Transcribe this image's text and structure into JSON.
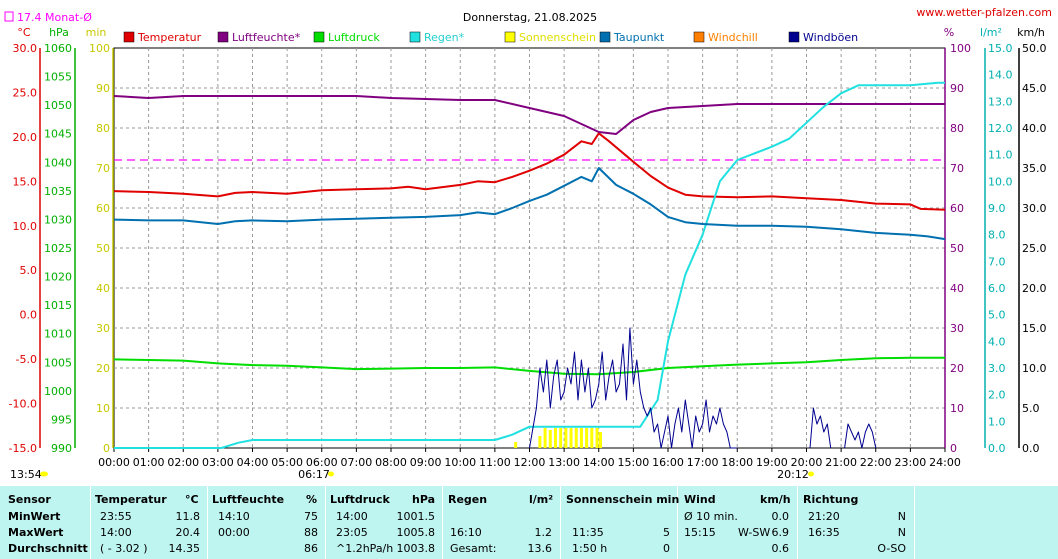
{
  "header": {
    "title": "Donnerstag, 21.08.2025",
    "site": "www.wetter-pfalzen.com",
    "month_avg_legend": "17.4 Monat-Ø"
  },
  "unit_labels": {
    "temp": "°C",
    "pressure": "hPa",
    "sun": "min",
    "hum": "%",
    "rain": "l/m²",
    "wind": "km/h"
  },
  "markers": {
    "sunrise": "06:17",
    "sunset": "20:12",
    "time_left": "13:54"
  },
  "colors": {
    "temperature": "#e00000",
    "humidity": "#800080",
    "pressure": "#00dd00",
    "rain": "#20e0e0",
    "sunshine": "#ffff00",
    "dewpoint": "#0070b0",
    "windchill": "#ff8000",
    "gusts": "#000090",
    "month_avg": "#ff00ff",
    "table_bg": "#bff5f1"
  },
  "chart_data": {
    "type": "line",
    "title": "Donnerstag, 21.08.2025",
    "x_ticks": [
      "00:00",
      "01:00",
      "02:00",
      "03:00",
      "04:00",
      "05:00",
      "06:00",
      "07:00",
      "08:00",
      "09:00",
      "10:00",
      "11:00",
      "12:00",
      "13:00",
      "14:00",
      "15:00",
      "16:00",
      "17:00",
      "18:00",
      "19:00",
      "20:00",
      "21:00",
      "22:00",
      "23:00",
      "24:00"
    ],
    "xlim_hours": [
      0,
      24
    ],
    "axes": {
      "temp": {
        "label": "°C",
        "range": [
          -15,
          30
        ],
        "ticks": [
          "30.0",
          "25.0",
          "20.0",
          "15.0",
          "10.0",
          "5.0",
          "0.0",
          "-5.0",
          "-10.0",
          "-15.0"
        ]
      },
      "pressure": {
        "label": "hPa",
        "range": [
          990,
          1060
        ],
        "ticks": [
          "1060",
          "1055",
          "1050",
          "1045",
          "1040",
          "1035",
          "1030",
          "1025",
          "1020",
          "1015",
          "1010",
          "1005",
          "1000",
          "995",
          "990"
        ]
      },
      "sun": {
        "label": "min",
        "range": [
          0,
          100
        ],
        "ticks": [
          "100",
          "90",
          "80",
          "70",
          "60",
          "50",
          "40",
          "30",
          "20",
          "10",
          "0"
        ]
      },
      "hum": {
        "label": "%",
        "range": [
          0,
          100
        ],
        "ticks": [
          "100",
          "90",
          "80",
          "70",
          "60",
          "50",
          "40",
          "30",
          "20",
          "10",
          "0"
        ]
      },
      "rain": {
        "label": "l/m²",
        "range": [
          0,
          15
        ],
        "ticks": [
          "15.0",
          "14.0",
          "13.0",
          "12.0",
          "11.0",
          "10.0",
          "9.0",
          "8.0",
          "7.0",
          "6.0",
          "5.0",
          "4.0",
          "3.0",
          "2.0",
          "1.0",
          "0.0"
        ]
      },
      "wind": {
        "label": "km/h",
        "range": [
          0,
          50
        ],
        "ticks": [
          "50.0",
          "45.0",
          "40.0",
          "35.0",
          "30.0",
          "25.0",
          "20.0",
          "15.0",
          "10.0",
          "5.0",
          "0.0"
        ]
      }
    },
    "grid": true,
    "legend_position": "top",
    "legend": [
      "Temperatur",
      "Luftfeuchte*",
      "Luftdruck",
      "Regen*",
      "Sonnenschein",
      "Taupunkt",
      "Windchill",
      "Windböen"
    ],
    "month_avg_temp": 17.4,
    "series": [
      {
        "name": "Temperatur",
        "axis": "temp",
        "points": [
          [
            0,
            13.9
          ],
          [
            1,
            13.8
          ],
          [
            2,
            13.6
          ],
          [
            3,
            13.3
          ],
          [
            3.5,
            13.7
          ],
          [
            4,
            13.8
          ],
          [
            5,
            13.6
          ],
          [
            6,
            14.0
          ],
          [
            7,
            14.1
          ],
          [
            8,
            14.2
          ],
          [
            8.5,
            14.4
          ],
          [
            9,
            14.1
          ],
          [
            10,
            14.6
          ],
          [
            10.5,
            15.0
          ],
          [
            11,
            14.9
          ],
          [
            11.5,
            15.5
          ],
          [
            12,
            16.2
          ],
          [
            12.5,
            17.0
          ],
          [
            13,
            18.0
          ],
          [
            13.5,
            19.5
          ],
          [
            13.8,
            19.2
          ],
          [
            14,
            20.4
          ],
          [
            14.3,
            19.5
          ],
          [
            15,
            17.2
          ],
          [
            15.5,
            15.6
          ],
          [
            16,
            14.3
          ],
          [
            16.5,
            13.5
          ],
          [
            17,
            13.3
          ],
          [
            18,
            13.2
          ],
          [
            19,
            13.3
          ],
          [
            20,
            13.1
          ],
          [
            21,
            12.9
          ],
          [
            22,
            12.5
          ],
          [
            23,
            12.4
          ],
          [
            23.3,
            11.9
          ],
          [
            24,
            11.8
          ]
        ]
      },
      {
        "name": "Luftfeuchte*",
        "axis": "hum",
        "points": [
          [
            0,
            88
          ],
          [
            1,
            87.5
          ],
          [
            2,
            88
          ],
          [
            4,
            88
          ],
          [
            7,
            88
          ],
          [
            8,
            87.5
          ],
          [
            10,
            87
          ],
          [
            11,
            87
          ],
          [
            12,
            85
          ],
          [
            13,
            83
          ],
          [
            13.5,
            81
          ],
          [
            14,
            79
          ],
          [
            14.5,
            78.5
          ],
          [
            15,
            82
          ],
          [
            15.5,
            84
          ],
          [
            16,
            85
          ],
          [
            17,
            85.5
          ],
          [
            18,
            86
          ],
          [
            20,
            86
          ],
          [
            24,
            86
          ]
        ]
      },
      {
        "name": "Luftdruck",
        "axis": "pressure",
        "points": [
          [
            0,
            1005.5
          ],
          [
            1,
            1005.4
          ],
          [
            2,
            1005.3
          ],
          [
            3,
            1004.8
          ],
          [
            4,
            1004.5
          ],
          [
            5,
            1004.4
          ],
          [
            6,
            1004.1
          ],
          [
            7,
            1003.8
          ],
          [
            8,
            1003.9
          ],
          [
            9,
            1004.0
          ],
          [
            10,
            1004.0
          ],
          [
            11,
            1004.1
          ],
          [
            12,
            1003.5
          ],
          [
            13,
            1003.0
          ],
          [
            14,
            1002.9
          ],
          [
            15,
            1003.3
          ],
          [
            16,
            1004.0
          ],
          [
            17,
            1004.3
          ],
          [
            18,
            1004.6
          ],
          [
            19,
            1004.8
          ],
          [
            20,
            1005.0
          ],
          [
            21,
            1005.4
          ],
          [
            22,
            1005.7
          ],
          [
            23,
            1005.8
          ],
          [
            24,
            1005.8
          ]
        ]
      },
      {
        "name": "Regen*",
        "axis": "rain",
        "points": [
          [
            0,
            0
          ],
          [
            3.1,
            0
          ],
          [
            3.6,
            0.2
          ],
          [
            4,
            0.3
          ],
          [
            11,
            0.3
          ],
          [
            11.5,
            0.5
          ],
          [
            12,
            0.8
          ],
          [
            15.2,
            0.8
          ],
          [
            15.7,
            1.8
          ],
          [
            16,
            4.0
          ],
          [
            16.5,
            6.5
          ],
          [
            17,
            8.0
          ],
          [
            17.5,
            10.0
          ],
          [
            18,
            10.8
          ],
          [
            19,
            11.3
          ],
          [
            19.5,
            11.6
          ],
          [
            20,
            12.2
          ],
          [
            20.5,
            12.8
          ],
          [
            21,
            13.3
          ],
          [
            21.5,
            13.6
          ],
          [
            22,
            13.6
          ],
          [
            23,
            13.6
          ],
          [
            23.8,
            13.7
          ],
          [
            24,
            13.7
          ]
        ]
      },
      {
        "name": "Taupunkt",
        "axis": "temp",
        "points": [
          [
            0,
            10.7
          ],
          [
            1,
            10.6
          ],
          [
            2,
            10.6
          ],
          [
            3,
            10.2
          ],
          [
            3.5,
            10.5
          ],
          [
            4,
            10.6
          ],
          [
            5,
            10.5
          ],
          [
            6,
            10.7
          ],
          [
            7,
            10.8
          ],
          [
            8,
            10.9
          ],
          [
            9,
            11.0
          ],
          [
            10,
            11.2
          ],
          [
            10.5,
            11.5
          ],
          [
            11,
            11.3
          ],
          [
            11.5,
            12.0
          ],
          [
            12,
            12.8
          ],
          [
            12.5,
            13.5
          ],
          [
            13,
            14.5
          ],
          [
            13.5,
            15.5
          ],
          [
            13.8,
            15.0
          ],
          [
            14,
            16.5
          ],
          [
            14.5,
            14.6
          ],
          [
            15,
            13.6
          ],
          [
            15.5,
            12.4
          ],
          [
            16,
            11.0
          ],
          [
            16.5,
            10.4
          ],
          [
            17,
            10.2
          ],
          [
            18,
            10.0
          ],
          [
            19,
            10.0
          ],
          [
            20,
            9.9
          ],
          [
            21,
            9.6
          ],
          [
            22,
            9.2
          ],
          [
            23,
            9.0
          ],
          [
            23.5,
            8.8
          ],
          [
            24,
            8.5
          ]
        ]
      },
      {
        "name": "Windböen",
        "axis": "wind",
        "points": [
          [
            12,
            0
          ],
          [
            12.2,
            5
          ],
          [
            12.3,
            10
          ],
          [
            12.4,
            7
          ],
          [
            12.5,
            11
          ],
          [
            12.6,
            5
          ],
          [
            12.7,
            9
          ],
          [
            12.8,
            11
          ],
          [
            12.9,
            6
          ],
          [
            13.0,
            7
          ],
          [
            13.1,
            10
          ],
          [
            13.2,
            8
          ],
          [
            13.3,
            12
          ],
          [
            13.4,
            6
          ],
          [
            13.5,
            11
          ],
          [
            13.6,
            7
          ],
          [
            13.7,
            10
          ],
          [
            13.8,
            5
          ],
          [
            13.9,
            6
          ],
          [
            14.0,
            8
          ],
          [
            14.1,
            12
          ],
          [
            14.2,
            6
          ],
          [
            14.3,
            9
          ],
          [
            14.4,
            11
          ],
          [
            14.5,
            7
          ],
          [
            14.6,
            8
          ],
          [
            14.7,
            13
          ],
          [
            14.8,
            6
          ],
          [
            14.9,
            15
          ],
          [
            15.0,
            8
          ],
          [
            15.1,
            11
          ],
          [
            15.2,
            7
          ],
          [
            15.3,
            5
          ],
          [
            15.4,
            4
          ],
          [
            15.5,
            5
          ],
          [
            15.6,
            2
          ],
          [
            15.7,
            3
          ],
          [
            15.8,
            0
          ],
          [
            16.0,
            4
          ],
          [
            16.1,
            0
          ],
          [
            16.2,
            3
          ],
          [
            16.3,
            5
          ],
          [
            16.4,
            2
          ],
          [
            16.5,
            6
          ],
          [
            16.6,
            3
          ],
          [
            16.7,
            0
          ],
          [
            16.8,
            4
          ],
          [
            16.9,
            2
          ],
          [
            17.0,
            3
          ],
          [
            17.1,
            6
          ],
          [
            17.2,
            2
          ],
          [
            17.3,
            4
          ],
          [
            17.4,
            3
          ],
          [
            17.5,
            5
          ],
          [
            17.6,
            3
          ],
          [
            17.7,
            2
          ],
          [
            17.8,
            0
          ],
          [
            18.0,
            0
          ]
        ]
      },
      {
        "name": "Windböen",
        "axis": "wind",
        "points": [
          [
            20.1,
            0
          ],
          [
            20.2,
            5
          ],
          [
            20.3,
            3
          ],
          [
            20.4,
            4
          ],
          [
            20.5,
            2
          ],
          [
            20.6,
            3
          ],
          [
            20.7,
            0
          ]
        ]
      },
      {
        "name": "Windböen",
        "axis": "wind",
        "points": [
          [
            21.1,
            0
          ],
          [
            21.2,
            3
          ],
          [
            21.3,
            2
          ],
          [
            21.4,
            1
          ],
          [
            21.5,
            2
          ],
          [
            21.6,
            0
          ],
          [
            21.7,
            2
          ],
          [
            21.8,
            3
          ],
          [
            21.9,
            2
          ],
          [
            22.0,
            0
          ]
        ]
      }
    ],
    "sunshine_bars": [
      [
        11.6,
        1.5
      ],
      [
        12.3,
        3
      ],
      [
        12.45,
        5
      ],
      [
        12.6,
        4.5
      ],
      [
        12.75,
        5
      ],
      [
        12.9,
        5
      ],
      [
        13.05,
        5
      ],
      [
        13.2,
        5
      ],
      [
        13.35,
        5
      ],
      [
        13.5,
        5
      ],
      [
        13.65,
        5
      ],
      [
        13.8,
        5
      ],
      [
        13.95,
        5
      ],
      [
        14.05,
        4
      ]
    ]
  },
  "table": {
    "headers": {
      "sensor": "Sensor",
      "temp": "Temperatur",
      "temp_unit": "°C",
      "hum": "Luftfeuchte",
      "hum_unit": "%",
      "press": "Luftdruck",
      "press_unit": "hPa",
      "rain": "Regen",
      "rain_unit": "l/m²",
      "sun": "Sonnenschein min",
      "wind": "Wind",
      "wind_unit": "km/h",
      "dir": "Richtung"
    },
    "rows": [
      {
        "label": "MinWert",
        "temp_time": "23:55",
        "temp_val": "11.8",
        "hum_time": "14:10",
        "hum_val": "75",
        "press_time": "14:00",
        "press_val": "1001.5",
        "rain_time": "",
        "rain_val": "",
        "sun_time": "",
        "sun_val": "",
        "wind_time": "Ø 10 min.",
        "wind_mid": "",
        "wind_val": "0.0",
        "dir_time": "21:20",
        "dir_val": "N"
      },
      {
        "label": "MaxWert",
        "temp_time": "14:00",
        "temp_val": "20.4",
        "hum_time": "00:00",
        "hum_val": "88",
        "press_time": "23:05",
        "press_val": "1005.8",
        "rain_time": "16:10",
        "rain_val": "1.2",
        "sun_time": "11:35",
        "sun_val": "5",
        "wind_time": "15:15",
        "wind_mid": "W-SW",
        "wind_val": "6.9",
        "dir_time": "16:35",
        "dir_val": "N"
      },
      {
        "label": "Durchschnitt",
        "temp_time": "( - 3.02 )",
        "temp_val": "14.35",
        "hum_time": "",
        "hum_val": "86",
        "press_time": "^1.2hPa/h",
        "press_val": "1003.8",
        "rain_time": "Gesamt:",
        "rain_val": "13.6",
        "sun_time": "1:50 h",
        "sun_val": "0",
        "wind_time": "",
        "wind_mid": "",
        "wind_val": "0.6",
        "dir_time": "",
        "dir_val": "O-SO"
      }
    ]
  }
}
